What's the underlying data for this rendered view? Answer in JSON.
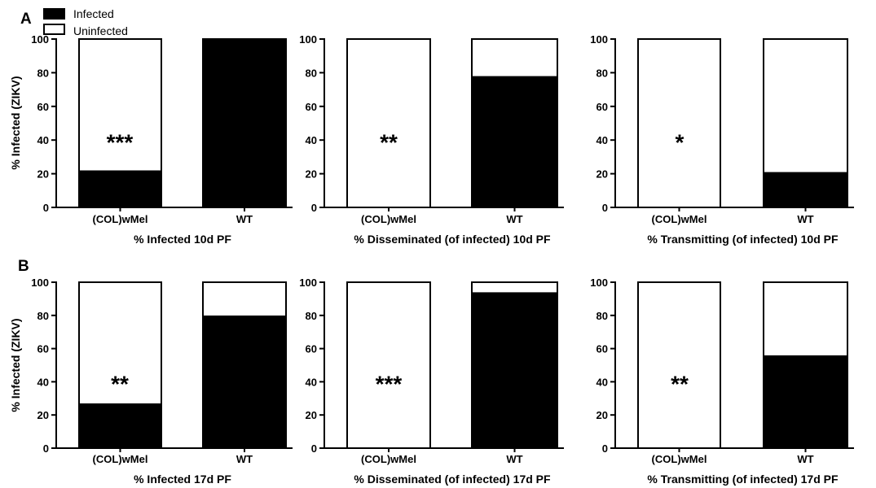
{
  "panel_letters": [
    "A",
    "B"
  ],
  "legend": {
    "items": [
      {
        "label": "Infected",
        "color": "#000000"
      },
      {
        "label": "Uninfected",
        "color": "#ffffff"
      }
    ]
  },
  "chart_data": [
    {
      "type": "bar",
      "stacked": true,
      "panel": "A",
      "categories": [
        "(COL)wMel",
        "WT"
      ],
      "series": [
        {
          "name": "Infected",
          "values": [
            22,
            100
          ],
          "color": "#000000"
        },
        {
          "name": "Uninfected",
          "values": [
            78,
            0
          ],
          "color": "#ffffff"
        }
      ],
      "xlabel": "% Infected 10d PF",
      "ylabel": "% Infected (ZIKV)",
      "ylim": [
        0,
        100
      ],
      "yticks": [
        0,
        20,
        40,
        60,
        80,
        100
      ],
      "annotation": "***"
    },
    {
      "type": "bar",
      "stacked": true,
      "panel": "A",
      "categories": [
        "(COL)wMel",
        "WT"
      ],
      "series": [
        {
          "name": "Infected",
          "values": [
            0,
            78
          ],
          "color": "#000000"
        },
        {
          "name": "Uninfected",
          "values": [
            100,
            22
          ],
          "color": "#ffffff"
        }
      ],
      "xlabel": "% Disseminated (of infected) 10d PF",
      "ylabel": "",
      "ylim": [
        0,
        100
      ],
      "yticks": [
        0,
        20,
        40,
        60,
        80,
        100
      ],
      "annotation": "**"
    },
    {
      "type": "bar",
      "stacked": true,
      "panel": "A",
      "categories": [
        "(COL)wMel",
        "WT"
      ],
      "series": [
        {
          "name": "Infected",
          "values": [
            0,
            21
          ],
          "color": "#000000"
        },
        {
          "name": "Uninfected",
          "values": [
            100,
            79
          ],
          "color": "#ffffff"
        }
      ],
      "xlabel": "% Transmitting (of infected) 10d PF",
      "ylabel": "",
      "ylim": [
        0,
        100
      ],
      "yticks": [
        0,
        20,
        40,
        60,
        80,
        100
      ],
      "annotation": "*"
    },
    {
      "type": "bar",
      "stacked": true,
      "panel": "B",
      "categories": [
        "(COL)wMel",
        "WT"
      ],
      "series": [
        {
          "name": "Infected",
          "values": [
            27,
            80
          ],
          "color": "#000000"
        },
        {
          "name": "Uninfected",
          "values": [
            73,
            20
          ],
          "color": "#ffffff"
        }
      ],
      "xlabel": "% Infected 17d PF",
      "ylabel": "% Infected (ZIKV)",
      "ylim": [
        0,
        100
      ],
      "yticks": [
        0,
        20,
        40,
        60,
        80,
        100
      ],
      "annotation": "**"
    },
    {
      "type": "bar",
      "stacked": true,
      "panel": "B",
      "categories": [
        "(COL)wMel",
        "WT"
      ],
      "series": [
        {
          "name": "Infected",
          "values": [
            0,
            94
          ],
          "color": "#000000"
        },
        {
          "name": "Uninfected",
          "values": [
            100,
            6
          ],
          "color": "#ffffff"
        }
      ],
      "xlabel": "% Disseminated (of infected) 17d PF",
      "ylabel": "",
      "ylim": [
        0,
        100
      ],
      "yticks": [
        0,
        20,
        40,
        60,
        80,
        100
      ],
      "annotation": "***"
    },
    {
      "type": "bar",
      "stacked": true,
      "panel": "B",
      "categories": [
        "(COL)wMel",
        "WT"
      ],
      "series": [
        {
          "name": "Infected",
          "values": [
            0,
            56
          ],
          "color": "#000000"
        },
        {
          "name": "Uninfected",
          "values": [
            100,
            44
          ],
          "color": "#ffffff"
        }
      ],
      "xlabel": "% Transmitting (of infected) 17d PF",
      "ylabel": "",
      "ylim": [
        0,
        100
      ],
      "yticks": [
        0,
        20,
        40,
        60,
        80,
        100
      ],
      "annotation": "**"
    }
  ]
}
